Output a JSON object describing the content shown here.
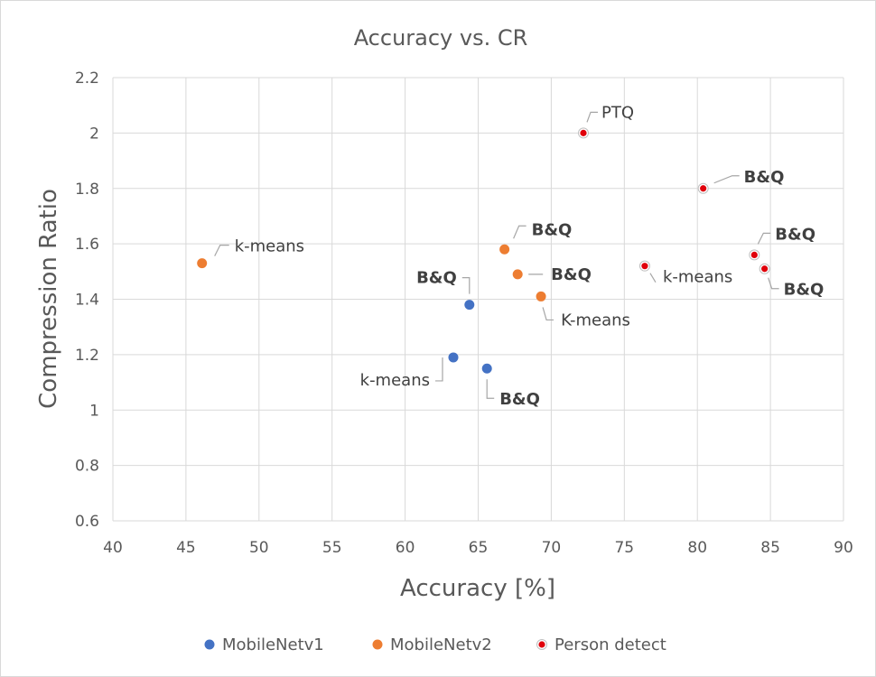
{
  "chart_data": {
    "type": "scatter",
    "title": "Accuracy vs. CR",
    "xlabel": "Accuracy [%]",
    "ylabel": "Compression Ratio",
    "xlim": [
      40,
      90
    ],
    "ylim": [
      0.6,
      2.2
    ],
    "x_ticks": [
      "40",
      "45",
      "50",
      "55",
      "60",
      "65",
      "70",
      "75",
      "80",
      "85",
      "90"
    ],
    "y_ticks": [
      "0.6",
      "0.8",
      "1",
      "1.2",
      "1.4",
      "1.6",
      "1.8",
      "2",
      "2.2"
    ],
    "grid": true,
    "legend_position": "bottom",
    "series": [
      {
        "name": "MobileNetv1",
        "color": "#4472c4",
        "points": [
          {
            "x": 64.4,
            "y": 1.38,
            "label": "B&Q"
          },
          {
            "x": 63.3,
            "y": 1.19,
            "label": "k-means"
          },
          {
            "x": 65.6,
            "y": 1.15,
            "label": "B&Q"
          }
        ]
      },
      {
        "name": "MobileNetv2",
        "color": "#ed7d31",
        "points": [
          {
            "x": 46.1,
            "y": 1.53,
            "label": "k-means"
          },
          {
            "x": 66.8,
            "y": 1.58,
            "label": "B&Q"
          },
          {
            "x": 67.7,
            "y": 1.49,
            "label": "B&Q"
          },
          {
            "x": 69.3,
            "y": 1.41,
            "label": "K-means"
          }
        ]
      },
      {
        "name": "Person detect",
        "color": "#e0000b",
        "points": [
          {
            "x": 72.2,
            "y": 2.0,
            "label": "PTQ"
          },
          {
            "x": 80.4,
            "y": 1.8,
            "label": "B&Q"
          },
          {
            "x": 83.9,
            "y": 1.56,
            "label": "B&Q"
          },
          {
            "x": 84.6,
            "y": 1.51,
            "label": "B&Q"
          },
          {
            "x": 76.4,
            "y": 1.52,
            "label": "k-means"
          }
        ]
      }
    ]
  }
}
